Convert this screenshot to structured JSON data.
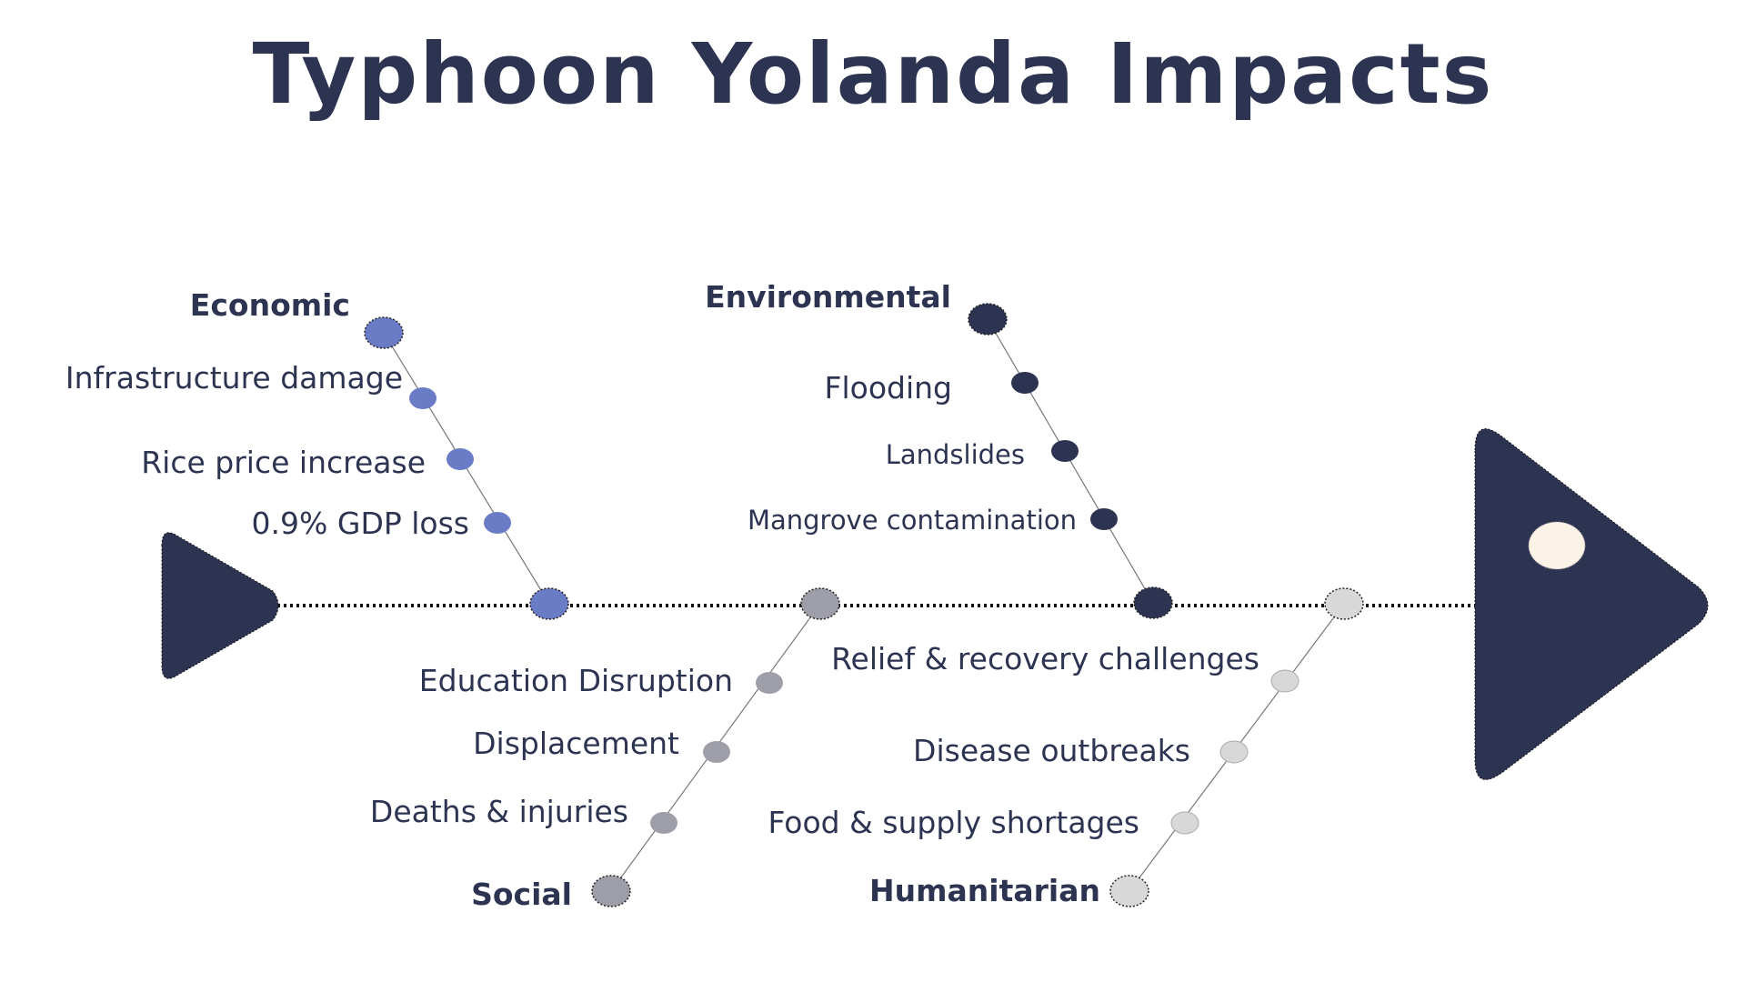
{
  "title": "Typhoon Yolanda Impacts",
  "colors": {
    "navy": "#2d3452",
    "economic": "#6b7cc6",
    "social": "#9e9ea8",
    "humanitarian": "#d8d8d8",
    "eye": "#fcf3e8"
  },
  "categories": {
    "economic": {
      "label": "Economic",
      "items": [
        "Infrastructure damage",
        "Rice price increase",
        "0.9% GDP loss"
      ]
    },
    "environmental": {
      "label": "Environmental",
      "items": [
        "Flooding",
        "Landslides",
        "Mangrove contamination"
      ]
    },
    "social": {
      "label": "Social",
      "items": [
        "Education Disruption",
        "Displacement",
        "Deaths & injuries"
      ]
    },
    "humanitarian": {
      "label": "Humanitarian",
      "items": [
        "Relief & recovery challenges",
        "Disease outbreaks",
        "Food & supply shortages"
      ]
    }
  }
}
